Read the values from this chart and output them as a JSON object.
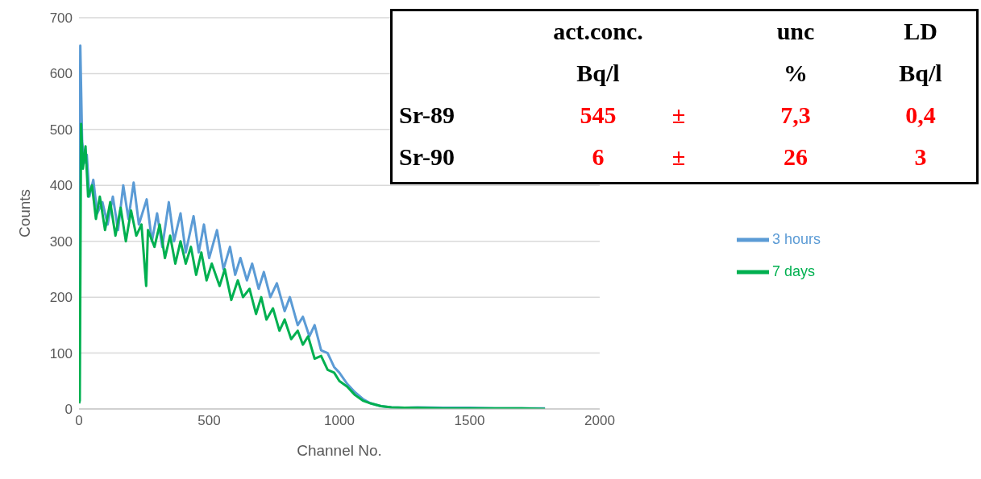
{
  "chart_data": {
    "type": "line",
    "xlabel": "Channel No.",
    "ylabel": "Counts",
    "xlim": [
      0,
      2000
    ],
    "xticks": [
      0,
      500,
      1000,
      1500,
      2000
    ],
    "ylim": [
      0,
      700
    ],
    "yticks": [
      0,
      100,
      200,
      300,
      400,
      500,
      600,
      700
    ],
    "grid": "y",
    "legend": "right",
    "marker": "none",
    "line_style": "solid",
    "series": [
      {
        "name": "3 hours",
        "color": "#5b9bd5",
        "x": [
          0,
          5,
          12,
          20,
          30,
          40,
          55,
          70,
          90,
          110,
          130,
          150,
          170,
          190,
          210,
          230,
          260,
          280,
          300,
          320,
          345,
          365,
          390,
          410,
          440,
          460,
          480,
          500,
          530,
          555,
          580,
          600,
          620,
          645,
          665,
          690,
          710,
          735,
          760,
          790,
          810,
          840,
          860,
          885,
          905,
          930,
          955,
          980,
          1000,
          1030,
          1060,
          1090,
          1120,
          1160,
          1200,
          1250,
          1300,
          1400,
          1500,
          1600,
          1700,
          1790
        ],
        "values": [
          10,
          650,
          480,
          440,
          455,
          380,
          410,
          350,
          370,
          330,
          380,
          320,
          400,
          340,
          405,
          330,
          375,
          300,
          350,
          290,
          370,
          300,
          350,
          280,
          345,
          280,
          330,
          270,
          320,
          250,
          290,
          240,
          270,
          230,
          260,
          215,
          245,
          200,
          225,
          175,
          200,
          150,
          165,
          130,
          150,
          105,
          100,
          75,
          65,
          45,
          30,
          18,
          10,
          5,
          3,
          2,
          3,
          2,
          2,
          1,
          1,
          1
        ]
      },
      {
        "name": "7 days",
        "color": "#00b050",
        "x": [
          0,
          3,
          8,
          15,
          25,
          35,
          50,
          65,
          80,
          100,
          120,
          140,
          160,
          180,
          200,
          220,
          240,
          258,
          265,
          290,
          310,
          330,
          350,
          370,
          390,
          410,
          430,
          450,
          470,
          490,
          510,
          540,
          560,
          585,
          610,
          630,
          655,
          680,
          700,
          720,
          745,
          770,
          790,
          815,
          840,
          860,
          880,
          905,
          930,
          955,
          980,
          1000,
          1030,
          1060,
          1090,
          1120,
          1160,
          1200,
          1250,
          1300,
          1400,
          1500,
          1600,
          1700,
          1790
        ],
        "values": [
          10,
          15,
          510,
          430,
          470,
          380,
          400,
          340,
          380,
          320,
          370,
          310,
          360,
          300,
          355,
          310,
          330,
          220,
          320,
          290,
          330,
          270,
          310,
          260,
          300,
          260,
          290,
          240,
          280,
          230,
          260,
          220,
          250,
          195,
          230,
          200,
          215,
          170,
          200,
          160,
          180,
          140,
          160,
          125,
          140,
          115,
          130,
          90,
          95,
          70,
          65,
          50,
          40,
          25,
          15,
          10,
          5,
          3,
          2,
          2,
          1,
          1,
          1,
          1,
          0
        ]
      }
    ],
    "annotations": [
      "act.conc.",
      "unc",
      "LD",
      "Bq/l",
      "%",
      "Bq/l",
      "Sr-89",
      "545",
      "±",
      "7,3",
      "0,4",
      "Sr-90",
      "6",
      "±",
      "26",
      "3"
    ]
  }
}
